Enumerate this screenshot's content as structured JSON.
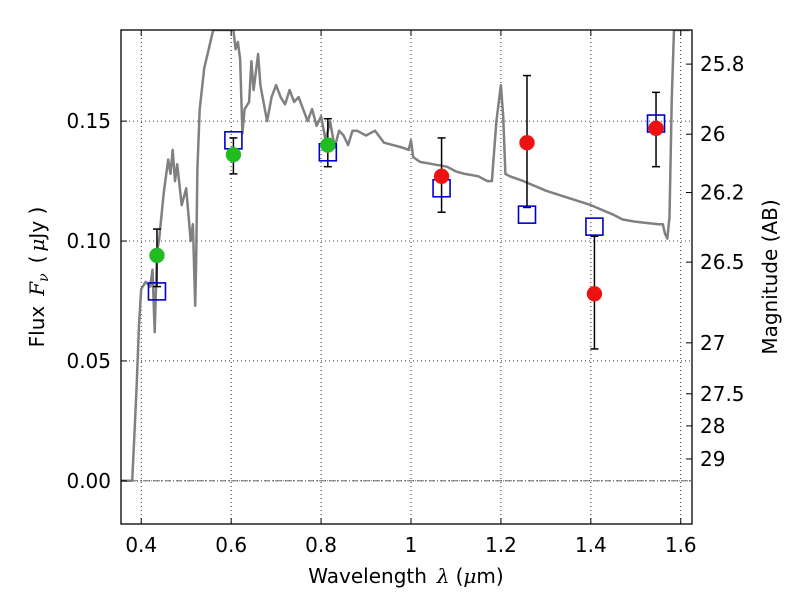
{
  "chart_data": {
    "type": "scatter",
    "xlabel_text": "Wavelength",
    "xlabel_symbol": "λ",
    "xlabel_unit_open": "(",
    "xlabel_unit_mu": "μ",
    "xlabel_unit_rest": "m)",
    "ylabel_text": "Flux",
    "ylabel_symbol": "F",
    "ylabel_subscript": "ν",
    "ylabel_unit_open": "(",
    "ylabel_unit_mu": "μ",
    "ylabel_unit_rest": "Jy )",
    "y2label": "Magnitude (AB)",
    "xlim": [
      0.355,
      1.625
    ],
    "ylim": [
      -0.018,
      0.188
    ],
    "grid": true,
    "x_ticks": [
      {
        "value": 0.4,
        "label": "0.4"
      },
      {
        "value": 0.6,
        "label": "0.6"
      },
      {
        "value": 0.8,
        "label": "0.8"
      },
      {
        "value": 1.0,
        "label": "1"
      },
      {
        "value": 1.2,
        "label": "1.2"
      },
      {
        "value": 1.4,
        "label": "1.4"
      },
      {
        "value": 1.6,
        "label": "1.6"
      }
    ],
    "y_ticks": [
      {
        "value": 0.0,
        "label": "0.00"
      },
      {
        "value": 0.05,
        "label": "0.05"
      },
      {
        "value": 0.1,
        "label": "0.10"
      },
      {
        "value": 0.15,
        "label": "0.15"
      }
    ],
    "mag_ticks": [
      {
        "value": 25.8,
        "label": "25.8"
      },
      {
        "value": 26.0,
        "label": "26"
      },
      {
        "value": 26.2,
        "label": "26.2"
      },
      {
        "value": 26.5,
        "label": "26.5"
      },
      {
        "value": 27.0,
        "label": "27"
      },
      {
        "value": 27.5,
        "label": "27.5"
      },
      {
        "value": 28.0,
        "label": "28"
      },
      {
        "value": 29.0,
        "label": "29"
      }
    ],
    "sed_model": {
      "color": "#808080",
      "x": [
        0.355,
        0.38,
        0.385,
        0.39,
        0.395,
        0.4,
        0.41,
        0.42,
        0.425,
        0.43,
        0.435,
        0.44,
        0.45,
        0.46,
        0.465,
        0.47,
        0.475,
        0.48,
        0.49,
        0.5,
        0.51,
        0.515,
        0.52,
        0.522,
        0.525,
        0.53,
        0.54,
        0.55,
        0.56,
        0.565,
        0.57,
        0.58,
        0.59,
        0.6,
        0.605,
        0.61,
        0.615,
        0.62,
        0.625,
        0.63,
        0.64,
        0.645,
        0.65,
        0.66,
        0.665,
        0.67,
        0.68,
        0.69,
        0.7,
        0.71,
        0.72,
        0.73,
        0.74,
        0.75,
        0.76,
        0.77,
        0.78,
        0.79,
        0.8,
        0.81,
        0.82,
        0.83,
        0.84,
        0.85,
        0.86,
        0.87,
        0.88,
        0.9,
        0.92,
        0.94,
        0.96,
        0.98,
        0.995,
        1.0,
        1.005,
        1.02,
        1.05,
        1.08,
        1.1,
        1.12,
        1.15,
        1.17,
        1.18,
        1.19,
        1.2,
        1.205,
        1.21,
        1.22,
        1.25,
        1.3,
        1.35,
        1.4,
        1.45,
        1.47,
        1.5,
        1.55,
        1.56,
        1.565,
        1.57,
        1.575,
        1.58,
        1.585,
        1.59,
        1.6,
        1.61,
        1.62
      ],
      "y": [
        0.0,
        0.0,
        0.02,
        0.04,
        0.065,
        0.08,
        0.083,
        0.081,
        0.088,
        0.062,
        0.095,
        0.101,
        0.12,
        0.134,
        0.128,
        0.138,
        0.125,
        0.132,
        0.115,
        0.122,
        0.1,
        0.107,
        0.073,
        0.09,
        0.13,
        0.155,
        0.172,
        0.18,
        0.188,
        0.188,
        0.188,
        0.188,
        0.188,
        0.188,
        0.188,
        0.18,
        0.183,
        0.176,
        0.145,
        0.155,
        0.158,
        0.175,
        0.163,
        0.178,
        0.165,
        0.16,
        0.15,
        0.16,
        0.165,
        0.16,
        0.157,
        0.163,
        0.158,
        0.16,
        0.155,
        0.15,
        0.155,
        0.148,
        0.152,
        0.142,
        0.15,
        0.139,
        0.146,
        0.144,
        0.14,
        0.146,
        0.146,
        0.144,
        0.146,
        0.141,
        0.14,
        0.139,
        0.138,
        0.142,
        0.135,
        0.133,
        0.132,
        0.131,
        0.129,
        0.128,
        0.127,
        0.125,
        0.125,
        0.15,
        0.165,
        0.152,
        0.128,
        0.127,
        0.125,
        0.121,
        0.118,
        0.115,
        0.111,
        0.109,
        0.108,
        0.107,
        0.107,
        0.103,
        0.101,
        0.11,
        0.16,
        0.188,
        0.188,
        0.188,
        0.188,
        0.188
      ]
    },
    "series": [
      {
        "marker": "square-open",
        "color": "#0000cc",
        "x": [
          0.435,
          0.605,
          0.815,
          1.068,
          1.258,
          1.408,
          1.545
        ],
        "y": [
          0.079,
          0.142,
          0.137,
          0.122,
          0.111,
          0.106,
          0.149
        ]
      },
      {
        "marker": "circle",
        "color": "#22bb22",
        "x": [
          0.435,
          0.605,
          0.815
        ],
        "y": [
          0.094,
          0.136,
          0.14
        ],
        "err_low": [
          0.013,
          0.008,
          0.009
        ],
        "err_high": [
          0.011,
          0.007,
          0.011
        ]
      },
      {
        "marker": "circle",
        "color": "#ee1111",
        "x": [
          1.068,
          1.258,
          1.408,
          1.545
        ],
        "y": [
          0.127,
          0.141,
          0.078,
          0.147
        ],
        "err_low": [
          0.015,
          0.027,
          0.023,
          0.016
        ],
        "err_high": [
          0.016,
          0.028,
          0.024,
          0.015
        ]
      }
    ]
  }
}
